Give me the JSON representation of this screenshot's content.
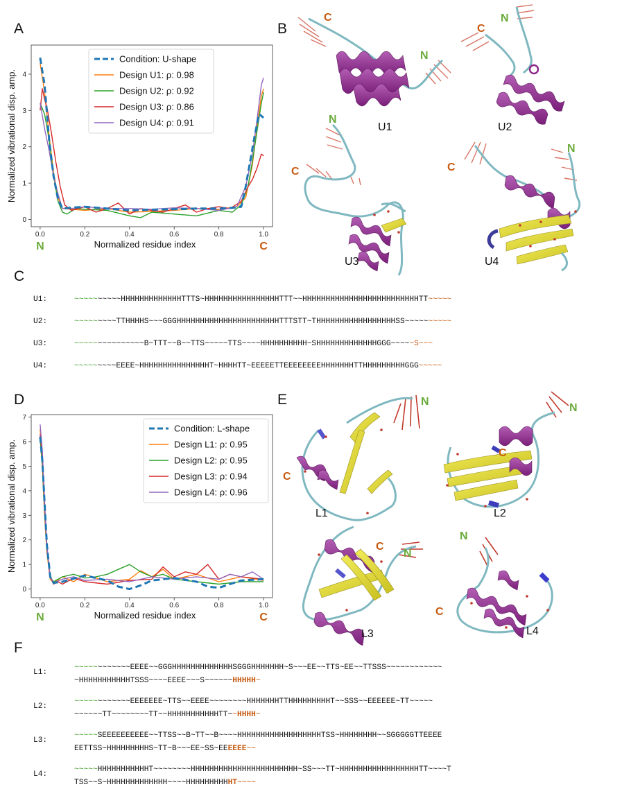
{
  "panel_labels": [
    "A",
    "B",
    "C",
    "D",
    "E",
    "F"
  ],
  "chart_data": [
    {
      "type": "line",
      "ylabel": "Normalized vibrational disp. amp.",
      "xlabel": "Normalized residue index",
      "xlim": [
        0,
        1
      ],
      "ylim": [
        -0.2,
        4.8
      ],
      "xticks": [
        "0.0",
        "0.2",
        "0.4",
        "0.6",
        "0.8",
        "1.0"
      ],
      "yticks": [
        "0",
        "1",
        "2",
        "3",
        "4"
      ],
      "terminus_left": "N",
      "terminus_right": "C",
      "legend_position": "top-center",
      "series": [
        {
          "name": "Condition: U-shape",
          "color": "#1f77b4",
          "dashed": true,
          "x": [
            0.0,
            0.02,
            0.04,
            0.06,
            0.08,
            0.1,
            0.13,
            0.2,
            0.3,
            0.4,
            0.5,
            0.6,
            0.7,
            0.8,
            0.86,
            0.9,
            0.92,
            0.94,
            0.96,
            0.98,
            1.0
          ],
          "y": [
            4.45,
            3.7,
            2.2,
            1.2,
            0.55,
            0.3,
            0.32,
            0.35,
            0.3,
            0.25,
            0.27,
            0.28,
            0.3,
            0.3,
            0.32,
            0.35,
            0.9,
            1.6,
            2.3,
            2.9,
            2.8
          ]
        },
        {
          "name": "Design U1: ρ: 0.98",
          "color": "#ff7f0e",
          "dashed": false,
          "x": [
            0.0,
            0.02,
            0.04,
            0.06,
            0.08,
            0.1,
            0.14,
            0.2,
            0.3,
            0.4,
            0.5,
            0.6,
            0.7,
            0.8,
            0.88,
            0.92,
            0.95,
            0.97,
            0.99,
            1.0
          ],
          "y": [
            4.3,
            3.5,
            2.3,
            1.3,
            0.6,
            0.3,
            0.28,
            0.25,
            0.3,
            0.2,
            0.22,
            0.25,
            0.3,
            0.28,
            0.35,
            0.6,
            1.5,
            2.5,
            3.4,
            3.6
          ]
        },
        {
          "name": "Design U2: ρ: 0.92",
          "color": "#2ca02c",
          "dashed": false,
          "x": [
            0.0,
            0.02,
            0.04,
            0.06,
            0.08,
            0.1,
            0.12,
            0.16,
            0.2,
            0.3,
            0.4,
            0.45,
            0.5,
            0.6,
            0.7,
            0.8,
            0.86,
            0.9,
            0.93,
            0.95,
            0.97,
            0.99,
            1.0
          ],
          "y": [
            3.2,
            2.9,
            2.2,
            1.2,
            0.5,
            0.2,
            0.15,
            0.3,
            0.28,
            0.25,
            0.1,
            0.05,
            0.2,
            0.15,
            0.1,
            0.25,
            0.2,
            0.4,
            0.9,
            1.6,
            2.4,
            3.2,
            3.5
          ]
        },
        {
          "name": "Design U3: ρ: 0.86",
          "color": "#d62728",
          "dashed": false,
          "x": [
            0.0,
            0.01,
            0.02,
            0.03,
            0.05,
            0.07,
            0.09,
            0.11,
            0.14,
            0.2,
            0.25,
            0.3,
            0.35,
            0.4,
            0.45,
            0.5,
            0.55,
            0.6,
            0.65,
            0.7,
            0.75,
            0.8,
            0.85,
            0.9,
            0.93,
            0.95,
            0.97,
            0.99,
            1.0
          ],
          "y": [
            3.0,
            3.6,
            3.3,
            3.1,
            2.4,
            1.6,
            0.9,
            0.4,
            0.25,
            0.35,
            0.2,
            0.3,
            0.45,
            0.15,
            0.3,
            0.25,
            0.2,
            0.3,
            0.4,
            0.2,
            0.3,
            0.35,
            0.3,
            0.5,
            0.9,
            1.1,
            1.4,
            1.8,
            1.75
          ]
        },
        {
          "name": "Design U4: ρ: 0.91",
          "color": "#9467bd",
          "dashed": false,
          "x": [
            0.0,
            0.02,
            0.04,
            0.06,
            0.08,
            0.1,
            0.14,
            0.2,
            0.3,
            0.4,
            0.5,
            0.6,
            0.7,
            0.8,
            0.88,
            0.92,
            0.95,
            0.97,
            0.99,
            1.0
          ],
          "y": [
            3.2,
            2.5,
            1.9,
            1.2,
            0.7,
            0.3,
            0.3,
            0.35,
            0.3,
            0.3,
            0.28,
            0.32,
            0.3,
            0.25,
            0.35,
            0.9,
            1.8,
            2.7,
            3.7,
            3.9
          ]
        }
      ]
    },
    {
      "type": "line",
      "ylabel": "Normalized vibrational disp. amp.",
      "xlabel": "Normalized residue index",
      "xlim": [
        0,
        1
      ],
      "ylim": [
        -0.35,
        7.1
      ],
      "xticks": [
        "0.0",
        "0.2",
        "0.4",
        "0.6",
        "0.8",
        "1.0"
      ],
      "yticks": [
        "0",
        "1",
        "2",
        "3",
        "4",
        "5",
        "6",
        "7"
      ],
      "terminus_left": "N",
      "terminus_right": "C",
      "legend_position": "top-right",
      "series": [
        {
          "name": "Condition: L-shape",
          "color": "#1f77b4",
          "dashed": true,
          "x": [
            0.0,
            0.01,
            0.02,
            0.03,
            0.045,
            0.06,
            0.1,
            0.2,
            0.3,
            0.35,
            0.4,
            0.45,
            0.5,
            0.6,
            0.7,
            0.75,
            0.8,
            0.85,
            0.9,
            1.0
          ],
          "y": [
            6.2,
            5.2,
            3.5,
            1.8,
            0.5,
            0.25,
            0.3,
            0.55,
            0.35,
            0.1,
            0.0,
            0.15,
            0.35,
            0.45,
            0.3,
            0.1,
            0.05,
            0.2,
            0.35,
            0.4
          ]
        },
        {
          "name": "Design L1: ρ: 0.95",
          "color": "#ff7f0e",
          "dashed": false,
          "x": [
            0.0,
            0.01,
            0.02,
            0.03,
            0.045,
            0.06,
            0.1,
            0.15,
            0.2,
            0.3,
            0.4,
            0.45,
            0.5,
            0.55,
            0.6,
            0.7,
            0.8,
            0.9,
            1.0
          ],
          "y": [
            6.5,
            5.0,
            3.0,
            1.5,
            0.4,
            0.25,
            0.5,
            0.3,
            0.6,
            0.3,
            0.4,
            0.75,
            0.5,
            0.8,
            0.4,
            0.6,
            0.3,
            0.5,
            0.35
          ]
        },
        {
          "name": "Design L2: ρ: 0.95",
          "color": "#2ca02c",
          "dashed": false,
          "x": [
            0.0,
            0.01,
            0.02,
            0.03,
            0.045,
            0.06,
            0.1,
            0.15,
            0.2,
            0.25,
            0.3,
            0.35,
            0.4,
            0.45,
            0.5,
            0.55,
            0.6,
            0.7,
            0.8,
            0.9,
            1.0
          ],
          "y": [
            6.1,
            5.0,
            3.2,
            1.6,
            0.5,
            0.3,
            0.5,
            0.6,
            0.45,
            0.5,
            0.6,
            0.8,
            1.0,
            0.7,
            0.5,
            0.6,
            0.4,
            0.3,
            0.2,
            0.3,
            0.3
          ]
        },
        {
          "name": "Design L3: ρ: 0.94",
          "color": "#d62728",
          "dashed": false,
          "x": [
            0.0,
            0.01,
            0.02,
            0.03,
            0.045,
            0.06,
            0.08,
            0.1,
            0.15,
            0.2,
            0.3,
            0.4,
            0.5,
            0.55,
            0.6,
            0.65,
            0.7,
            0.75,
            0.8,
            0.85,
            0.9,
            1.0
          ],
          "y": [
            6.3,
            5.4,
            3.4,
            1.7,
            0.5,
            0.2,
            0.3,
            0.2,
            0.45,
            0.3,
            0.2,
            0.35,
            0.4,
            0.9,
            0.5,
            0.7,
            0.6,
            1.0,
            0.4,
            0.6,
            0.5,
            0.4
          ]
        },
        {
          "name": "Design L4: ρ: 0.96",
          "color": "#9467bd",
          "dashed": false,
          "x": [
            0.0,
            0.01,
            0.02,
            0.03,
            0.045,
            0.06,
            0.1,
            0.15,
            0.2,
            0.3,
            0.4,
            0.5,
            0.6,
            0.7,
            0.8,
            0.85,
            0.9,
            0.95,
            1.0
          ],
          "y": [
            6.7,
            5.6,
            3.6,
            1.8,
            0.5,
            0.25,
            0.4,
            0.5,
            0.35,
            0.4,
            0.3,
            0.5,
            0.4,
            0.5,
            0.4,
            0.6,
            0.5,
            0.7,
            0.4
          ]
        }
      ]
    }
  ],
  "structures": [
    {
      "label": "U1",
      "n_label": "N",
      "c_label": "C"
    },
    {
      "label": "U2",
      "n_label": "N",
      "c_label": "C"
    },
    {
      "label": "U3",
      "n_label": "N",
      "c_label": "C"
    },
    {
      "label": "U4",
      "n_label": "N",
      "c_label": "C"
    },
    {
      "label": "L1",
      "n_label": "N",
      "c_label": "C"
    },
    {
      "label": "L2",
      "n_label": "N",
      "c_label": "C"
    },
    {
      "label": "L3",
      "n_label": "N",
      "c_label": "C"
    },
    {
      "label": "L4",
      "n_label": "N",
      "c_label": "C"
    }
  ],
  "sequences_u": [
    {
      "label": "U1:",
      "lines": [
        [
          [
            "g",
            "~~~~~"
          ],
          [
            "k",
            "~~~~~HHHHHHHHHHHHHTTTS~HHHHHHHHHHHHHHHHTTT~~HHHHHHHHHHHHHHHHHHHHHHHHHTT"
          ],
          [
            "o",
            "~~~~~"
          ]
        ]
      ]
    },
    {
      "label": "U2:",
      "lines": [
        [
          [
            "g",
            "~~~~~"
          ],
          [
            "k",
            "~~~~TTHHHHS~~~GGGHHHHHHHHHHHHHHHHHHHHHHTTTSTT~THHHHHHHHHHHHHHHHHSS~~~~~"
          ],
          [
            "o",
            "~~~~~"
          ]
        ]
      ]
    },
    {
      "label": "U3:",
      "lines": [
        [
          [
            "g",
            "~~~~~"
          ],
          [
            "k",
            "~~~~~~~~~~B~TTT~~B~~TTS~~~~~TTS~~~~HHHHHHHHHH~SHHHHHHHHHHHHHGGG~~~~"
          ],
          [
            "o",
            "~S~~~"
          ]
        ]
      ]
    },
    {
      "label": "U4:",
      "lines": [
        [
          [
            "g",
            "~~~~~"
          ],
          [
            "k",
            "~~~~EEEE~HHHHHHHHHHHHHHHT~HHHHTT~EEEEETTEEEEEEEEHHHHHHHTTHHHHHHHHHGGG"
          ],
          [
            "o",
            "~~~~~"
          ]
        ]
      ]
    }
  ],
  "sequences_l": [
    {
      "label": "L1:",
      "lines": [
        [
          [
            "g",
            "~~~~~"
          ],
          [
            "k",
            "~~~~~~~EEEE~~GGGHHHHHHHHHHHHHSGGGHHHHHHH~S~~~EE~~TTS~EE~~TTSSS~~~~~~~~~~~~"
          ]
        ],
        [
          [
            "k",
            "~HHHHHHHHHHHTSSS~~~~EEEE~~~S~~~~~~"
          ],
          [
            "b",
            "HHHHH"
          ],
          [
            "o",
            "~"
          ]
        ]
      ]
    },
    {
      "label": "L2:",
      "lines": [
        [
          [
            "g",
            "~~~~~"
          ],
          [
            "k",
            "~~~~~~~EEEEEEE~TTS~~EEEE~~~~~~~~HHHHHHHTTHHHHHHHHHT~~SSS~~EEEEEE~TT~~~~~"
          ]
        ],
        [
          [
            "k",
            "~~~~~~TT~~~~~~~~TT~~HHHHHHHHHHHTT~"
          ],
          [
            "o",
            "~"
          ],
          [
            "b",
            "HHHH"
          ],
          [
            "o",
            "~"
          ]
        ]
      ]
    },
    {
      "label": "L3:",
      "lines": [
        [
          [
            "g",
            "~~~~~"
          ],
          [
            "k",
            "SEEEEEEEEEE~~TTSS~~B~TT~~B~~~~HHHHHHHHHHHHHHHHHHTSS~HHHHHHHH~~SGGGGGTTEEEE"
          ]
        ],
        [
          [
            "k",
            "EETTSS~HHHHHHHHHS~TT~B~~~EE~SS~EE"
          ],
          [
            "b",
            "EEEE"
          ],
          [
            "o",
            "~~"
          ]
        ]
      ]
    },
    {
      "label": "L4:",
      "lines": [
        [
          [
            "g",
            "~~~~~"
          ],
          [
            "k",
            "HHHHHHHHHHHT~~~~~~~~HHHHHHHHHHHHHHHHHHHHHHH~SS~~~TT~HHHHHHHHHHHHHHHHHTT~~~~T"
          ]
        ],
        [
          [
            "k",
            "TSS~~S~HHHHHHHHHHHHH~~~~HHHHHHHHH"
          ],
          [
            "b",
            "HT"
          ],
          [
            "o",
            "~~~~"
          ]
        ]
      ]
    }
  ]
}
